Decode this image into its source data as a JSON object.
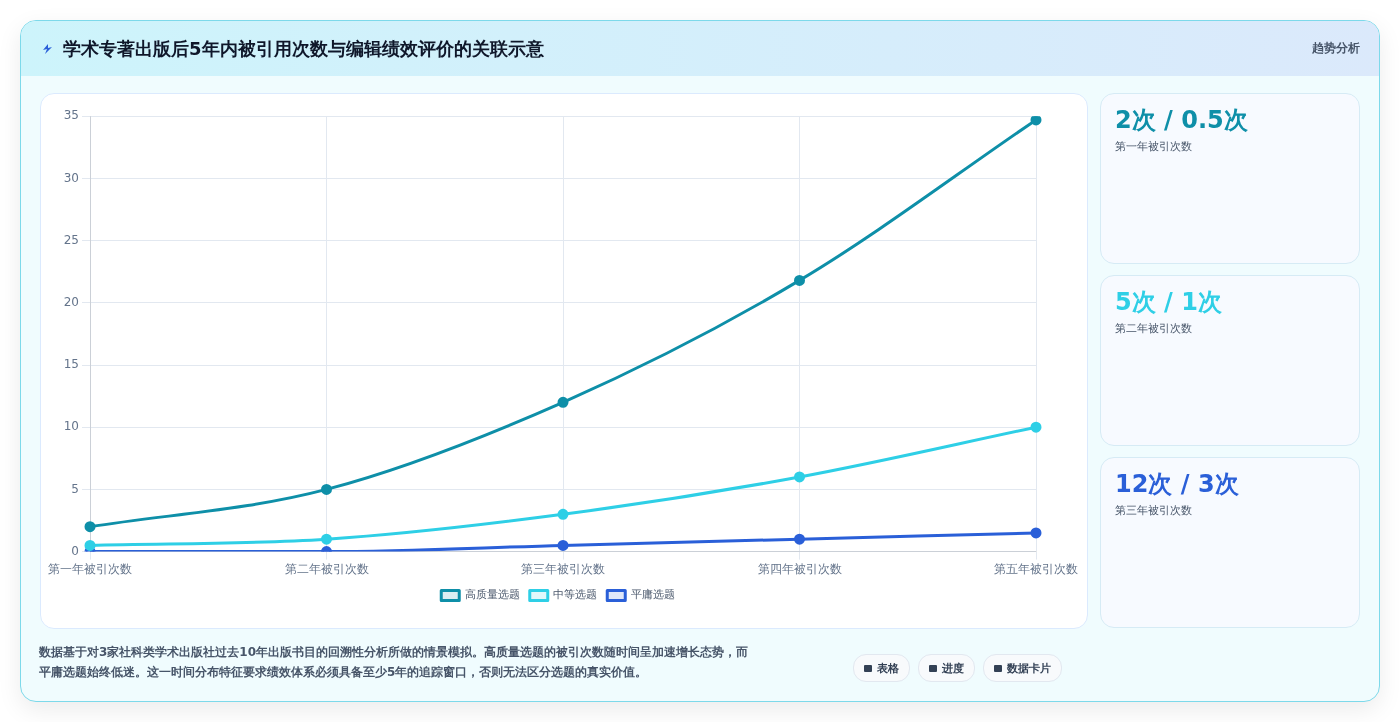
{
  "chart_data": [
    {
      "type": "line",
      "title": "学术专著出版后5年内被引用次数与编辑绩效评价的关联示意",
      "categories": [
        "第一年被引次数",
        "第二年被引次数",
        "第三年被引次数",
        "第四年被引次数",
        "第五年被引次数"
      ],
      "series": [
        {
          "name": "高质量选题",
          "color": "#0e8fa8",
          "values": [
            2,
            5,
            12,
            21.8,
            34.7
          ]
        },
        {
          "name": "中等选题",
          "color": "#2ecfe6",
          "values": [
            0.5,
            1,
            3,
            6,
            10
          ]
        },
        {
          "name": "平庸选题",
          "color": "#2a5fd8",
          "values": [
            0,
            0,
            0.5,
            1,
            1.5
          ]
        }
      ],
      "ylim": [
        0,
        35
      ],
      "yticks": [
        0,
        5,
        10,
        15,
        20,
        25,
        30,
        35
      ],
      "grid": true,
      "legend": "bottom",
      "marker": "circle",
      "line_style": "solid",
      "annotations": [
        "数据基于对3家社科类学术出版社过去10年出版书目的回溯性分析所做的情景模拟。高质量选题的被引次数随时间呈加速增长态势，而平庸选题始终低迷。这一时间分布特征要求绩效体系必须具备至少5年的追踪窗口，否则无法区分选题的真实价值。",
        "表格",
        "进度",
        "数据卡片"
      ]
    },
    {
      "type": "other",
      "title": "趋势分析",
      "annotations": [
        "2次 / 0.5次",
        "第一年被引次数",
        "5次 / 1次",
        "第二年被引次数",
        "12次 / 3次",
        "第三年被引次数"
      ]
    }
  ]
}
